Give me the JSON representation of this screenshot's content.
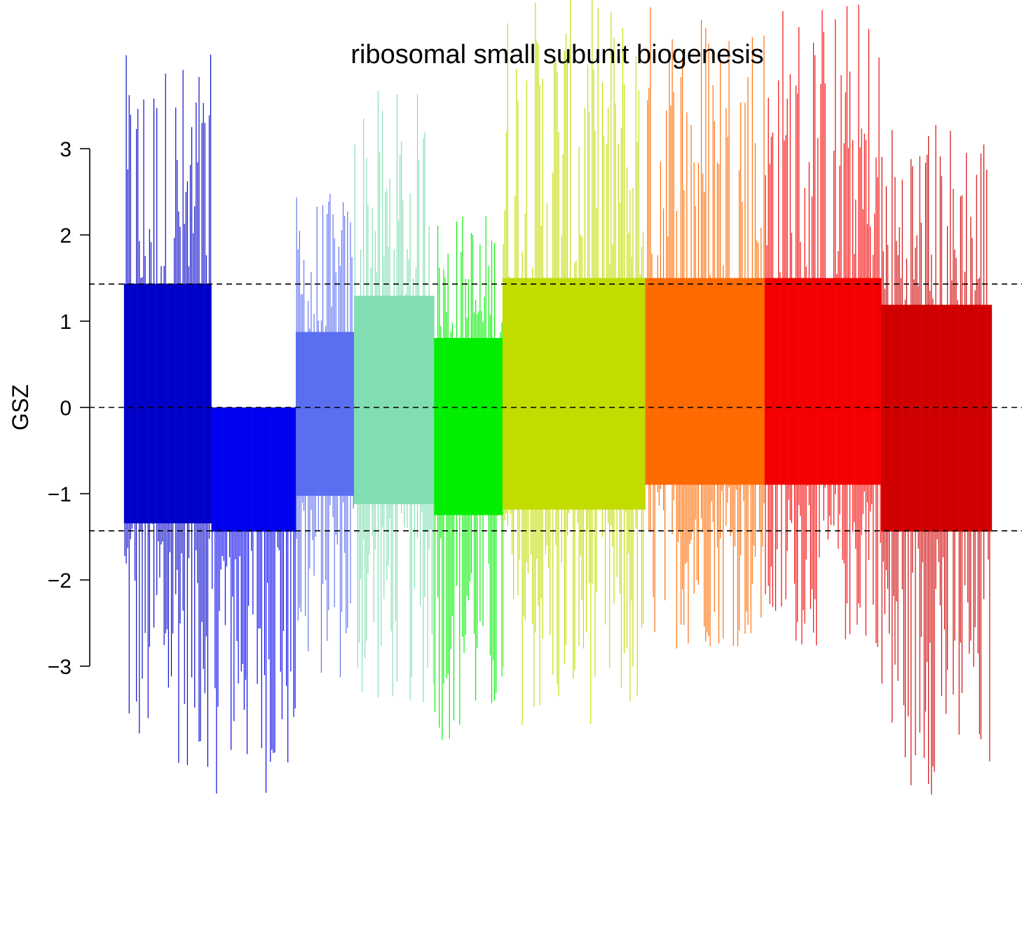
{
  "chart_data": {
    "type": "bar",
    "title": "ribosomal small subunit biogenesis",
    "xlabel": "",
    "ylabel": "GSZ",
    "ylim": [
      -3,
      3
    ],
    "yticks": [
      3,
      2,
      1,
      0,
      -1,
      -2,
      -3
    ],
    "ytick_labels": [
      "3",
      "2",
      "1",
      "0",
      "−1",
      "−2",
      "−3"
    ],
    "reference_lines": [
      1.43,
      0,
      -1.43
    ],
    "reference_line_style": "dashed",
    "grid": false,
    "legend": "none",
    "series": [
      {
        "color": "#0000c8",
        "count": 60,
        "lo": -4.2,
        "hi": 4.1
      },
      {
        "color": "#0000f0",
        "count": 58,
        "lo": -4.5,
        "hi": 0.0
      },
      {
        "color": "#5a6ef0",
        "count": 40,
        "lo": -3.2,
        "hi": 2.5
      },
      {
        "color": "#80deb2",
        "count": 55,
        "lo": -3.5,
        "hi": 3.7
      },
      {
        "color": "#00ee00",
        "count": 47,
        "lo": -3.9,
        "hi": 2.3
      },
      {
        "color": "#c2dc00",
        "count": 98,
        "lo": -3.7,
        "hi": 4.8
      },
      {
        "color": "#ff6a00",
        "count": 82,
        "lo": -2.8,
        "hi": 4.8
      },
      {
        "color": "#f50000",
        "count": 80,
        "lo": -2.8,
        "hi": 4.8
      },
      {
        "color": "#d00000",
        "count": 76,
        "lo": -4.5,
        "hi": 3.4
      }
    ]
  }
}
